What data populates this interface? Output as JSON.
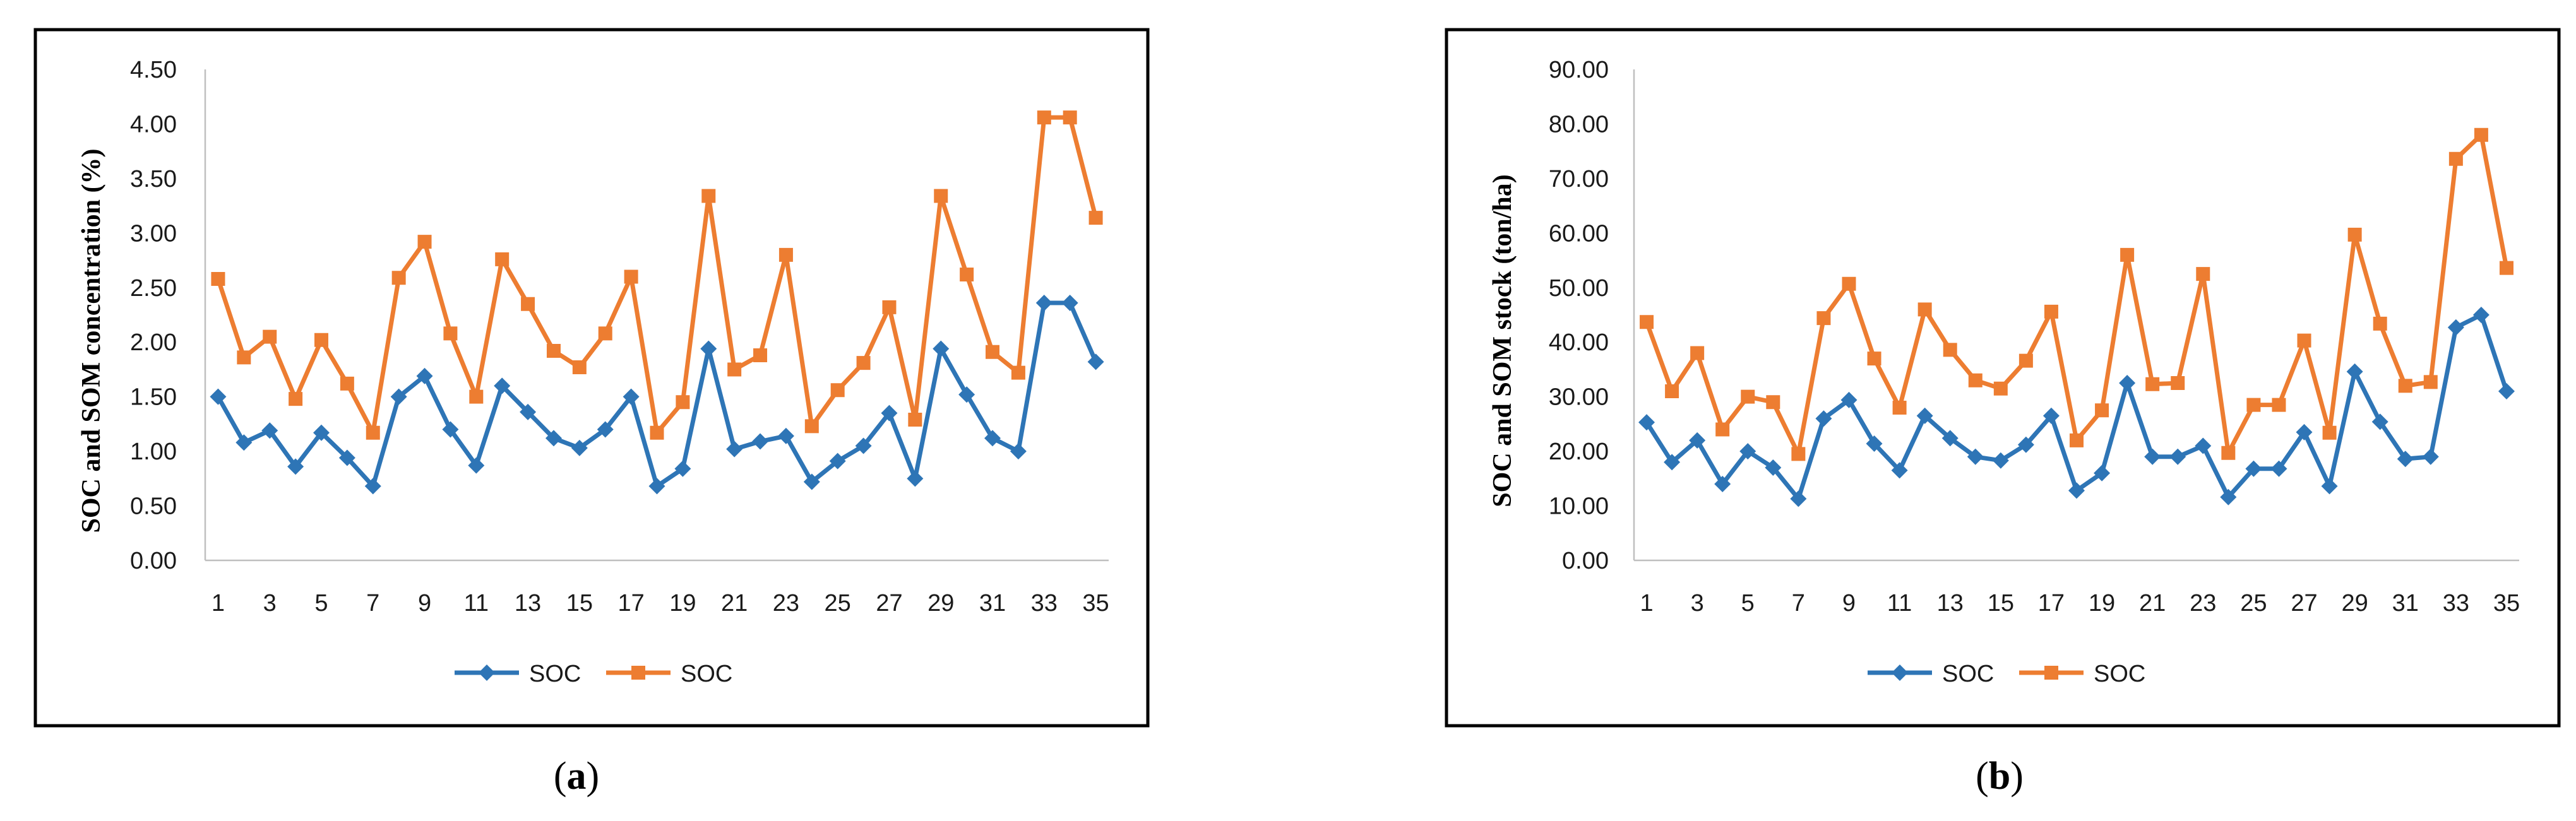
{
  "figure_panels": [
    {
      "caption_open": "(",
      "caption_letter": "a",
      "caption_close": ")"
    },
    {
      "caption_open": "(",
      "caption_letter": "b",
      "caption_close": ")"
    }
  ],
  "chart_data": [
    {
      "type": "line",
      "ylabel": "SOC and SOM concentration (%)",
      "xlabel": "",
      "ylim": [
        0,
        4.5
      ],
      "y_ticks": [
        "0.00",
        "0.50",
        "1.00",
        "1.50",
        "2.00",
        "2.50",
        "3.00",
        "3.50",
        "4.00",
        "4.50"
      ],
      "x": [
        1,
        2,
        3,
        4,
        5,
        6,
        7,
        8,
        9,
        10,
        11,
        12,
        13,
        14,
        15,
        16,
        17,
        18,
        19,
        20,
        21,
        22,
        23,
        24,
        25,
        26,
        27,
        28,
        29,
        30,
        31,
        32,
        33,
        34,
        35
      ],
      "x_tick_labels": [
        "1",
        "3",
        "5",
        "7",
        "9",
        "11",
        "13",
        "15",
        "17",
        "19",
        "21",
        "23",
        "25",
        "27",
        "29",
        "31",
        "33",
        "35"
      ],
      "grid": false,
      "legend_position": "bottom",
      "series": [
        {
          "name": "SOC",
          "color": "#2e75b6",
          "marker": "diamond",
          "values": [
            1.5,
            1.08,
            1.19,
            0.86,
            1.17,
            0.94,
            0.68,
            1.5,
            1.69,
            1.2,
            0.87,
            1.6,
            1.36,
            1.12,
            1.03,
            1.2,
            1.5,
            0.68,
            0.84,
            1.94,
            1.02,
            1.09,
            1.14,
            0.72,
            0.91,
            1.05,
            1.35,
            0.75,
            1.94,
            1.52,
            1.12,
            1.0,
            2.36,
            2.36,
            1.82
          ]
        },
        {
          "name": "SOC",
          "color": "#ed7d31",
          "marker": "square",
          "values": [
            2.58,
            1.86,
            2.05,
            1.48,
            2.02,
            1.62,
            1.17,
            2.59,
            2.92,
            2.08,
            1.5,
            2.76,
            2.35,
            1.92,
            1.77,
            2.08,
            2.6,
            1.17,
            1.45,
            3.34,
            1.75,
            1.88,
            2.8,
            1.23,
            1.56,
            1.81,
            2.32,
            1.29,
            3.34,
            2.62,
            1.91,
            1.72,
            4.06,
            4.06,
            3.14
          ]
        }
      ]
    },
    {
      "type": "line",
      "ylabel": "SOC and SOM stock (ton/ha)",
      "xlabel": "",
      "ylim": [
        0,
        90
      ],
      "y_ticks": [
        "0.00",
        "10.00",
        "20.00",
        "30.00",
        "40.00",
        "50.00",
        "60.00",
        "70.00",
        "80.00",
        "90.00"
      ],
      "x": [
        1,
        2,
        3,
        4,
        5,
        6,
        7,
        8,
        9,
        10,
        11,
        12,
        13,
        14,
        15,
        16,
        17,
        18,
        19,
        20,
        21,
        22,
        23,
        24,
        25,
        26,
        27,
        28,
        29,
        30,
        31,
        32,
        33,
        34,
        35
      ],
      "x_tick_labels": [
        "1",
        "3",
        "5",
        "7",
        "9",
        "11",
        "13",
        "15",
        "17",
        "19",
        "21",
        "23",
        "25",
        "27",
        "29",
        "31",
        "33",
        "35"
      ],
      "grid": false,
      "legend_position": "bottom",
      "series": [
        {
          "name": "SOC",
          "color": "#2e75b6",
          "marker": "diamond",
          "values": [
            25.3,
            18.0,
            22.0,
            14.0,
            20.0,
            17.0,
            11.3,
            26.0,
            29.4,
            21.4,
            16.5,
            26.5,
            22.4,
            19.0,
            18.3,
            21.2,
            26.5,
            12.8,
            16.0,
            32.5,
            19.0,
            19.0,
            21.0,
            11.6,
            16.8,
            16.8,
            23.5,
            13.6,
            34.6,
            25.4,
            18.6,
            19.0,
            42.7,
            45.0,
            31.0
          ]
        },
        {
          "name": "SOC",
          "color": "#ed7d31",
          "marker": "square",
          "values": [
            43.7,
            31.0,
            38.0,
            24.0,
            30.0,
            29.0,
            19.5,
            44.4,
            50.7,
            37.0,
            28.0,
            46.0,
            38.6,
            33.0,
            31.5,
            36.6,
            45.6,
            22.0,
            27.5,
            56.0,
            32.3,
            32.5,
            52.5,
            19.7,
            28.5,
            28.5,
            40.3,
            23.4,
            59.7,
            43.4,
            32.0,
            32.7,
            73.6,
            78.0,
            53.6
          ]
        }
      ]
    }
  ]
}
